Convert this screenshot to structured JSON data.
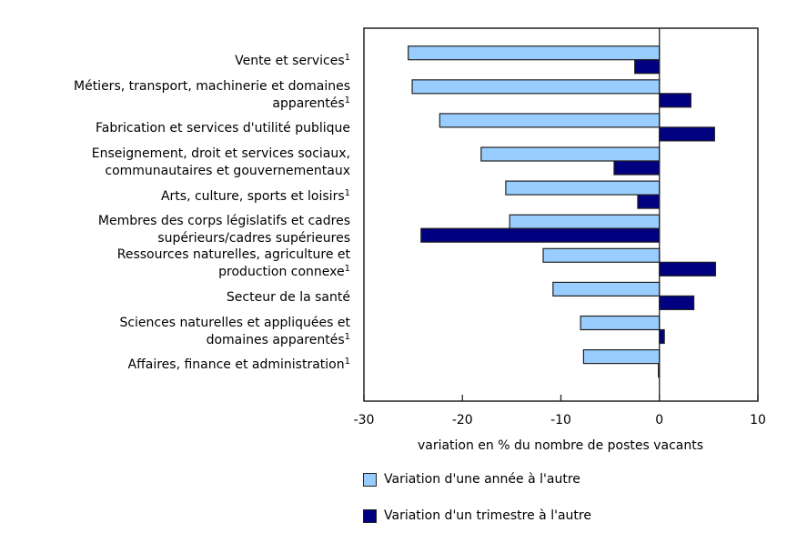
{
  "chart_data": {
    "type": "bar",
    "orientation": "horizontal",
    "title": "",
    "xlabel": "variation en % du nombre de postes vacants",
    "ylabel": "",
    "xlim": [
      -30,
      10
    ],
    "xticks": [
      -30,
      -20,
      -10,
      0,
      10
    ],
    "grid": false,
    "legend_position": "bottom",
    "categories": [
      {
        "lines": [
          "Vente et services"
        ],
        "note": "1"
      },
      {
        "lines": [
          "Métiers, transport, machinerie et domaines",
          "apparentés"
        ],
        "note": "1"
      },
      {
        "lines": [
          "Fabrication et services d'utilité publique"
        ],
        "note": ""
      },
      {
        "lines": [
          "Enseignement, droit et services sociaux,",
          "communautaires et gouvernementaux"
        ],
        "note": ""
      },
      {
        "lines": [
          "Arts, culture, sports et loisirs"
        ],
        "note": "1"
      },
      {
        "lines": [
          "Membres des corps législatifs et cadres",
          "supérieurs/cadres supérieures"
        ],
        "note": ""
      },
      {
        "lines": [
          "Ressources naturelles, agriculture et",
          "production connexe"
        ],
        "note": "1"
      },
      {
        "lines": [
          "Secteur de la santé"
        ],
        "note": ""
      },
      {
        "lines": [
          "Sciences naturelles et appliquées et",
          "domaines apparentés"
        ],
        "note": "1"
      },
      {
        "lines": [
          "Affaires, finance et administration"
        ],
        "note": "1"
      }
    ],
    "series": [
      {
        "name": "Variation d'une année à l'autre",
        "color": "#99ccff",
        "values": [
          -25.5,
          -25.1,
          -22.3,
          -18.1,
          -15.6,
          -15.2,
          -11.8,
          -10.8,
          -8.0,
          -7.7
        ]
      },
      {
        "name": "Variation d'un trimestre à l'autre",
        "color": "#000080",
        "values": [
          -2.5,
          3.2,
          5.6,
          -4.6,
          -2.2,
          -24.2,
          5.7,
          3.5,
          0.5,
          -0.1
        ]
      }
    ]
  }
}
